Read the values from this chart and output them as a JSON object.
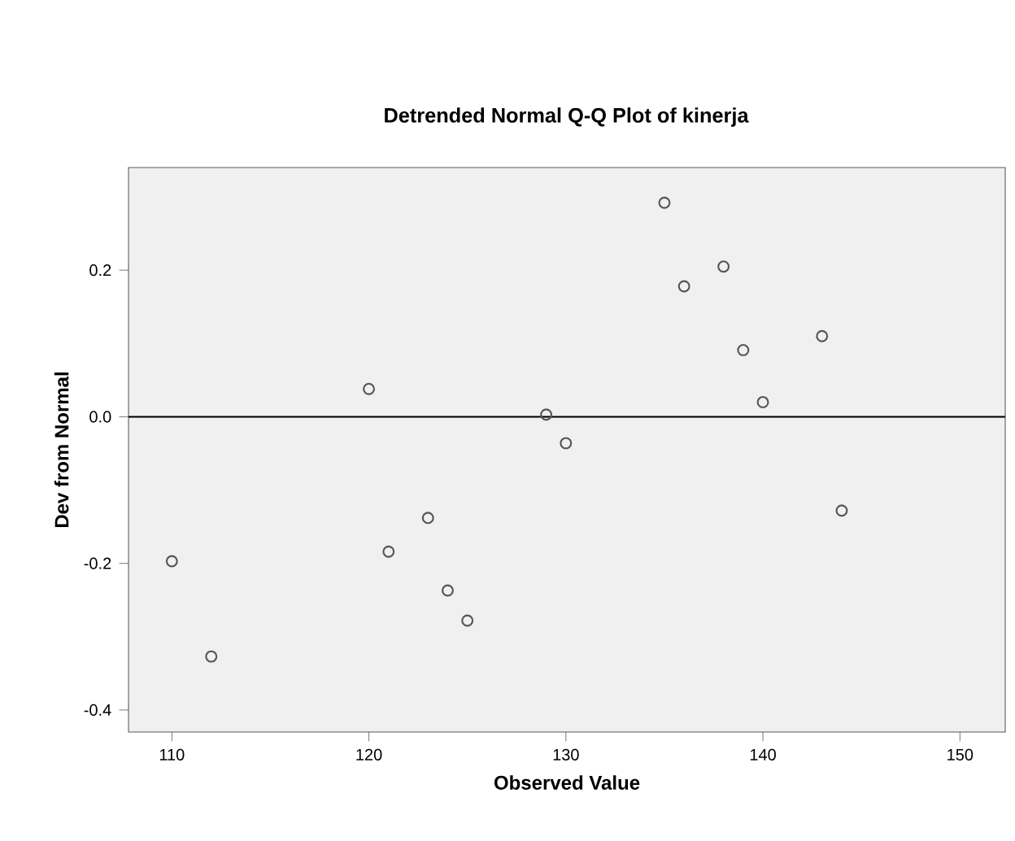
{
  "chart_data": {
    "type": "scatter",
    "title": "Detrended Normal Q-Q Plot of kinerja",
    "xlabel": "Observed Value",
    "ylabel": "Dev from Normal",
    "x": [
      110,
      112,
      120,
      121,
      123,
      124,
      125,
      129,
      130,
      135,
      136,
      138,
      139,
      140,
      143,
      144
    ],
    "values": [
      -0.197,
      -0.327,
      0.038,
      -0.184,
      -0.138,
      -0.237,
      -0.278,
      0.003,
      -0.036,
      0.292,
      0.178,
      0.205,
      0.091,
      0.02,
      0.11,
      -0.128
    ],
    "color": "#555555",
    "marker": "circle",
    "xlim": [
      107.8,
      152.3
    ],
    "ylim": [
      -0.43,
      0.34
    ],
    "xticks": [
      110,
      120,
      130,
      140,
      150
    ],
    "yticks": [
      {
        "value": -0.4,
        "label": "-0.4"
      },
      {
        "value": -0.2,
        "label": "-0.2"
      },
      {
        "value": 0,
        "label": "0.0"
      },
      {
        "value": 0.2,
        "label": "0.2"
      }
    ],
    "ref_lines": [
      {
        "axis": "y",
        "value": 0,
        "color": "#000000"
      }
    ],
    "grid": false
  }
}
